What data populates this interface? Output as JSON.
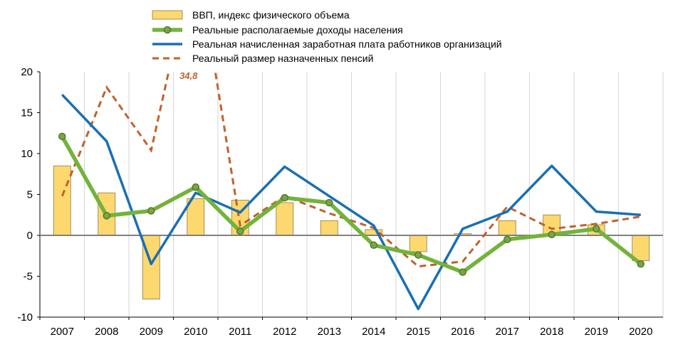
{
  "chart_data": {
    "type": "bar",
    "categories": [
      "2007",
      "2008",
      "2009",
      "2010",
      "2011",
      "2012",
      "2013",
      "2014",
      "2015",
      "2016",
      "2017",
      "2018",
      "2019",
      "2020"
    ],
    "ylim": [
      -10,
      20
    ],
    "yticks": [
      -10,
      -5,
      0,
      5,
      10,
      15,
      20
    ],
    "ytick_labels": [
      "-10",
      "-5",
      "0",
      "5",
      "10",
      "15",
      "20"
    ],
    "grid": "vertical",
    "legend_position": "top",
    "series": [
      {
        "name": "ВВП, индекс физического объема",
        "type": "bar",
        "color": "#FDD86E",
        "values": [
          8.5,
          5.2,
          -7.8,
          4.5,
          4.3,
          4.0,
          1.8,
          0.7,
          -2.0,
          0.2,
          1.8,
          2.5,
          1.3,
          -3.1
        ]
      },
      {
        "name": "Реальные располагаемые доходы населения",
        "type": "line-marker",
        "color": "#73B33B",
        "values": [
          12.1,
          2.4,
          3.0,
          5.9,
          0.5,
          4.6,
          4.0,
          -1.2,
          -2.4,
          -4.5,
          -0.5,
          0.1,
          0.8,
          -3.5
        ]
      },
      {
        "name": "Реальная начисленная заработная плата работников организаций",
        "type": "line",
        "color": "#1A6FB3",
        "values": [
          17.2,
          11.5,
          -3.5,
          5.2,
          2.8,
          8.4,
          4.8,
          1.2,
          -9.0,
          0.8,
          2.9,
          8.5,
          2.9,
          2.5
        ]
      },
      {
        "name": "Реальный размер назначенных пенсий",
        "type": "dashed-line",
        "color": "#C0622B",
        "values": [
          4.8,
          18.1,
          10.4,
          34.8,
          1.2,
          4.8,
          2.7,
          0.9,
          -3.8,
          -3.2,
          3.5,
          0.8,
          1.4,
          2.3
        ]
      }
    ],
    "annotations": [
      {
        "text": "34,8",
        "color": "#C0622B",
        "x": "2010",
        "y": 34.8
      }
    ]
  }
}
